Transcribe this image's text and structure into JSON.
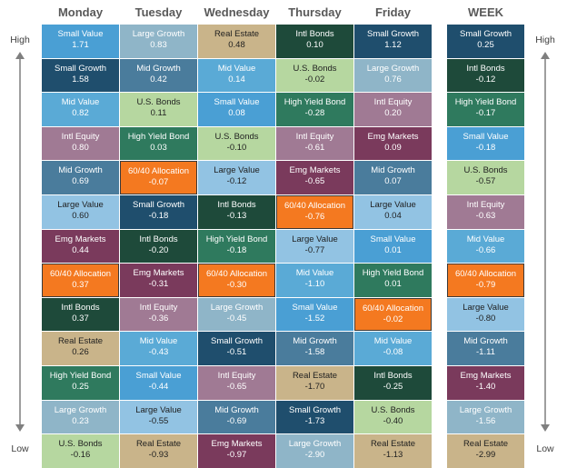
{
  "chart_data": {
    "type": "table",
    "title": "",
    "labels": {
      "high": "High",
      "low": "Low"
    },
    "columns": [
      {
        "day": "Monday",
        "cells": [
          {
            "name": "Small Value",
            "value": "1.71"
          },
          {
            "name": "Small Growth",
            "value": "1.58"
          },
          {
            "name": "Mid Value",
            "value": "0.82"
          },
          {
            "name": "Intl Equity",
            "value": "0.80"
          },
          {
            "name": "Mid Growth",
            "value": "0.69"
          },
          {
            "name": "Large Value",
            "value": "0.60"
          },
          {
            "name": "Emg Markets",
            "value": "0.44"
          },
          {
            "name": "60/40 Allocation",
            "value": "0.37"
          },
          {
            "name": "Intl Bonds",
            "value": "0.37"
          },
          {
            "name": "Real Estate",
            "value": "0.26"
          },
          {
            "name": "High Yield Bond",
            "value": "0.25"
          },
          {
            "name": "Large Growth",
            "value": "0.23"
          },
          {
            "name": "U.S. Bonds",
            "value": "-0.16"
          }
        ]
      },
      {
        "day": "Tuesday",
        "cells": [
          {
            "name": "Large Growth",
            "value": "0.83"
          },
          {
            "name": "Mid Growth",
            "value": "0.42"
          },
          {
            "name": "U.S. Bonds",
            "value": "0.11"
          },
          {
            "name": "High Yield Bond",
            "value": "0.03"
          },
          {
            "name": "60/40 Allocation",
            "value": "-0.07"
          },
          {
            "name": "Small Growth",
            "value": "-0.18"
          },
          {
            "name": "Intl Bonds",
            "value": "-0.20"
          },
          {
            "name": "Emg Markets",
            "value": "-0.31"
          },
          {
            "name": "Intl Equity",
            "value": "-0.36"
          },
          {
            "name": "Mid Value",
            "value": "-0.43"
          },
          {
            "name": "Small Value",
            "value": "-0.44"
          },
          {
            "name": "Large Value",
            "value": "-0.55"
          },
          {
            "name": "Real Estate",
            "value": "-0.93"
          }
        ]
      },
      {
        "day": "Wednesday",
        "cells": [
          {
            "name": "Real Estate",
            "value": "0.48"
          },
          {
            "name": "Mid Value",
            "value": "0.14"
          },
          {
            "name": "Small Value",
            "value": "0.08"
          },
          {
            "name": "U.S. Bonds",
            "value": "-0.10"
          },
          {
            "name": "Large Value",
            "value": "-0.12"
          },
          {
            "name": "Intl Bonds",
            "value": "-0.13"
          },
          {
            "name": "High Yield Bond",
            "value": "-0.18"
          },
          {
            "name": "60/40 Allocation",
            "value": "-0.30"
          },
          {
            "name": "Large Growth",
            "value": "-0.45"
          },
          {
            "name": "Small Growth",
            "value": "-0.51"
          },
          {
            "name": "Intl Equity",
            "value": "-0.65"
          },
          {
            "name": "Mid Growth",
            "value": "-0.69"
          },
          {
            "name": "Emg Markets",
            "value": "-0.97"
          }
        ]
      },
      {
        "day": "Thursday",
        "cells": [
          {
            "name": "Intl Bonds",
            "value": "0.10"
          },
          {
            "name": "U.S. Bonds",
            "value": "-0.02"
          },
          {
            "name": "High Yield Bond",
            "value": "-0.28"
          },
          {
            "name": "Intl Equity",
            "value": "-0.61"
          },
          {
            "name": "Emg Markets",
            "value": "-0.65"
          },
          {
            "name": "60/40 Allocation",
            "value": "-0.76"
          },
          {
            "name": "Large Value",
            "value": "-0.77"
          },
          {
            "name": "Mid Value",
            "value": "-1.10"
          },
          {
            "name": "Small Value",
            "value": "-1.52"
          },
          {
            "name": "Mid Growth",
            "value": "-1.58"
          },
          {
            "name": "Real Estate",
            "value": "-1.70"
          },
          {
            "name": "Small Growth",
            "value": "-1.73"
          },
          {
            "name": "Large Growth",
            "value": "-2.90"
          }
        ]
      },
      {
        "day": "Friday",
        "cells": [
          {
            "name": "Small Growth",
            "value": "1.12"
          },
          {
            "name": "Large Growth",
            "value": "0.76"
          },
          {
            "name": "Intl Equity",
            "value": "0.20"
          },
          {
            "name": "Emg Markets",
            "value": "0.09"
          },
          {
            "name": "Mid Growth",
            "value": "0.07"
          },
          {
            "name": "Large Value",
            "value": "0.04"
          },
          {
            "name": "Small Value",
            "value": "0.01"
          },
          {
            "name": "High Yield Bond",
            "value": "0.01"
          },
          {
            "name": "60/40 Allocation",
            "value": "-0.02"
          },
          {
            "name": "Mid Value",
            "value": "-0.08"
          },
          {
            "name": "Intl Bonds",
            "value": "-0.25"
          },
          {
            "name": "U.S. Bonds",
            "value": "-0.40"
          },
          {
            "name": "Real Estate",
            "value": "-1.13"
          }
        ]
      },
      {
        "day": "WEEK",
        "cells": [
          {
            "name": "Small Growth",
            "value": "0.25"
          },
          {
            "name": "Intl Bonds",
            "value": "-0.12"
          },
          {
            "name": "High Yield Bond",
            "value": "-0.17"
          },
          {
            "name": "Small Value",
            "value": "-0.18"
          },
          {
            "name": "U.S. Bonds",
            "value": "-0.57"
          },
          {
            "name": "Intl Equity",
            "value": "-0.63"
          },
          {
            "name": "Mid Value",
            "value": "-0.66"
          },
          {
            "name": "60/40 Allocation",
            "value": "-0.79"
          },
          {
            "name": "Large Value",
            "value": "-0.80"
          },
          {
            "name": "Mid Growth",
            "value": "-1.11"
          },
          {
            "name": "Emg Markets",
            "value": "-1.40"
          },
          {
            "name": "Large Growth",
            "value": "-1.56"
          },
          {
            "name": "Real Estate",
            "value": "-2.99"
          }
        ]
      }
    ],
    "asset_colors": {
      "Small Value": "#4a9fd4",
      "Small Growth": "#1f4e6d",
      "Mid Value": "#5aaad6",
      "Intl Equity": "#a07a94",
      "Mid Growth": "#4a7c9c",
      "Large Value": "#92c3e3",
      "Emg Markets": "#7a3a5c",
      "60/40 Allocation": "#f47920",
      "Intl Bonds": "#1e4a3a",
      "Real Estate": "#c9b48a",
      "High Yield Bond": "#2f7a5e",
      "Large Growth": "#8fb5c8",
      "U.S. Bonds": "#b6d7a0"
    },
    "light_text_assets": [
      "U.S. Bonds",
      "Real Estate",
      "Large Value"
    ]
  }
}
